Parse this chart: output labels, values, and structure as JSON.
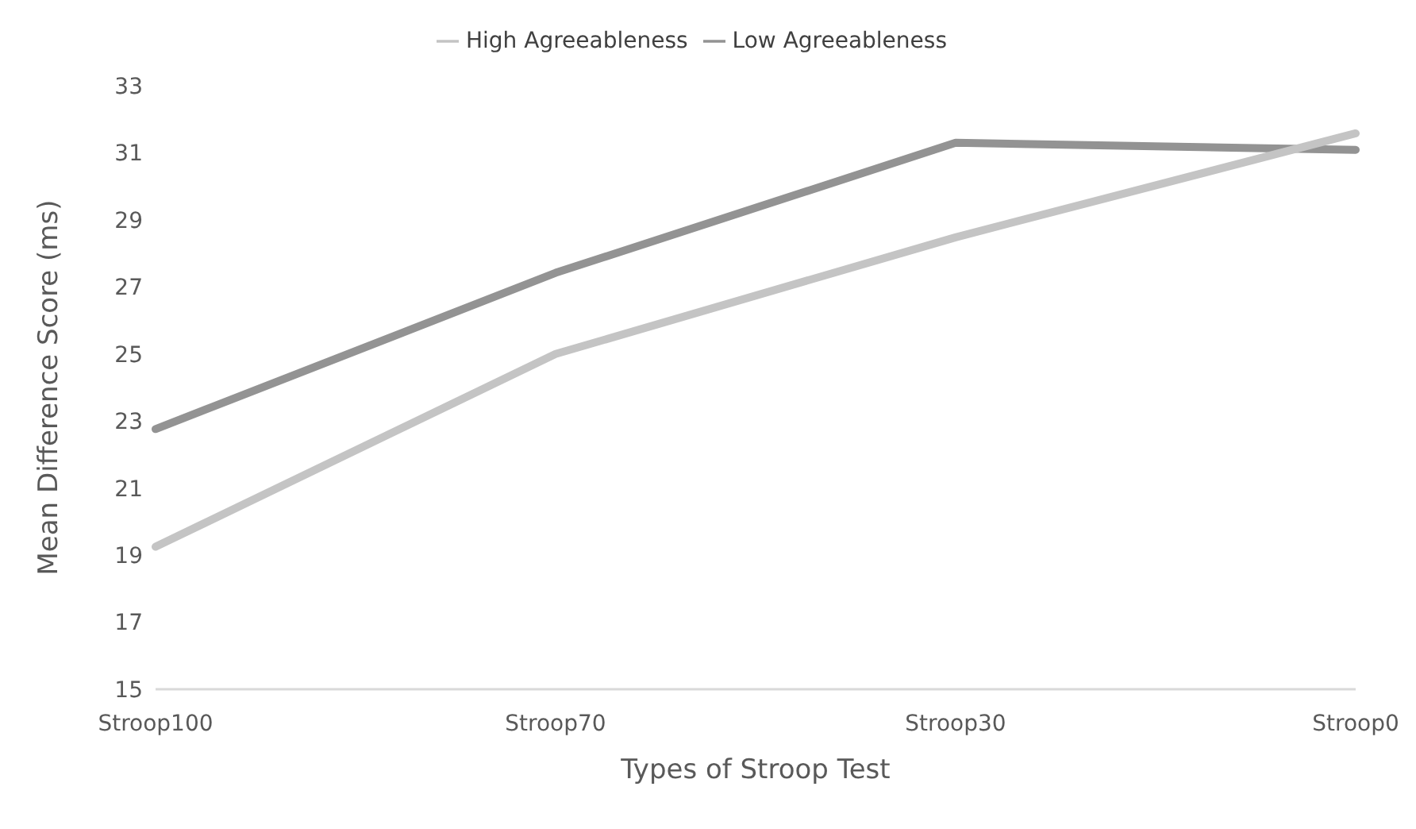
{
  "chart_data": {
    "type": "line",
    "xlabel": "Types of Stroop Test",
    "ylabel": "Mean Difference Score (ms)",
    "categories": [
      "Stroop100",
      "Stroop70",
      "Stroop30",
      "Stroop0"
    ],
    "series": [
      {
        "name": "Low Agreeableness",
        "color": "#939393",
        "values": [
          22.76,
          27.42,
          31.3,
          31.09
        ]
      },
      {
        "name": "High Agreeableness",
        "color": "#c4c4c4",
        "values": [
          19.25,
          25.0,
          28.48,
          31.58
        ]
      }
    ],
    "ylim": [
      15,
      33
    ],
    "yticks": [
      15,
      17,
      19,
      21,
      23,
      25,
      27,
      29,
      31,
      33
    ],
    "legend": "top",
    "marker": "none",
    "line_style": "solid"
  }
}
